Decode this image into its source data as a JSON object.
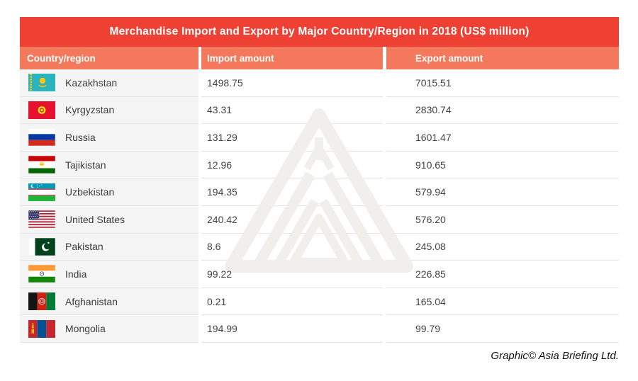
{
  "title": "Merchandise Import and Export by Major Country/Region in 2018 (US$ million)",
  "columns": {
    "country": "Country/region",
    "import": "Import amount",
    "export": "Export amount"
  },
  "table": {
    "rows": [
      {
        "flag": "kz",
        "country": "Kazakhstan",
        "import": "1498.75",
        "export": "7015.51"
      },
      {
        "flag": "kg",
        "country": "Kyrgyzstan",
        "import": "43.31",
        "export": "2830.74"
      },
      {
        "flag": "ru",
        "country": "Russia",
        "import": "131.29",
        "export": "1601.47"
      },
      {
        "flag": "tj",
        "country": "Tajikistan",
        "import": "12.96",
        "export": "910.65"
      },
      {
        "flag": "uz",
        "country": "Uzbekistan",
        "import": "194.35",
        "export": "579.94"
      },
      {
        "flag": "us",
        "country": "United States",
        "import": "240.42",
        "export": "576.20"
      },
      {
        "flag": "pk",
        "country": "Pakistan",
        "import": "8.6",
        "export": "245.08"
      },
      {
        "flag": "in",
        "country": "India",
        "import": "99.22",
        "export": "226.85"
      },
      {
        "flag": "af",
        "country": "Afghanistan",
        "import": "0.21",
        "export": "165.04"
      },
      {
        "flag": "mn",
        "country": "Mongolia",
        "import": "194.99",
        "export": "99.79"
      }
    ]
  },
  "footer": "Graphic© Asia Briefing Ltd.",
  "watermark_name": "asia-briefing-triangle-logo",
  "colors": {
    "title_bg": "#ee4134",
    "subheader_bg": "#f4795c",
    "country_column_bg": "#f5f5f5",
    "row_divider": "#e4e4e4",
    "watermark": "#f1efeb",
    "text": "#434343"
  },
  "chart_data": {
    "type": "table",
    "title": "Merchandise Import and Export by Major Country/Region in 2018 (US$ million)",
    "columns": [
      "Country/region",
      "Import amount",
      "Export amount"
    ],
    "rows": [
      [
        "Kazakhstan",
        1498.75,
        7015.51
      ],
      [
        "Kyrgyzstan",
        43.31,
        2830.74
      ],
      [
        "Russia",
        131.29,
        1601.47
      ],
      [
        "Tajikistan",
        12.96,
        910.65
      ],
      [
        "Uzbekistan",
        194.35,
        579.94
      ],
      [
        "United States",
        240.42,
        576.2
      ],
      [
        "Pakistan",
        8.6,
        245.08
      ],
      [
        "India",
        99.22,
        226.85
      ],
      [
        "Afghanistan",
        0.21,
        165.04
      ],
      [
        "Mongolia",
        194.99,
        99.79
      ]
    ]
  }
}
